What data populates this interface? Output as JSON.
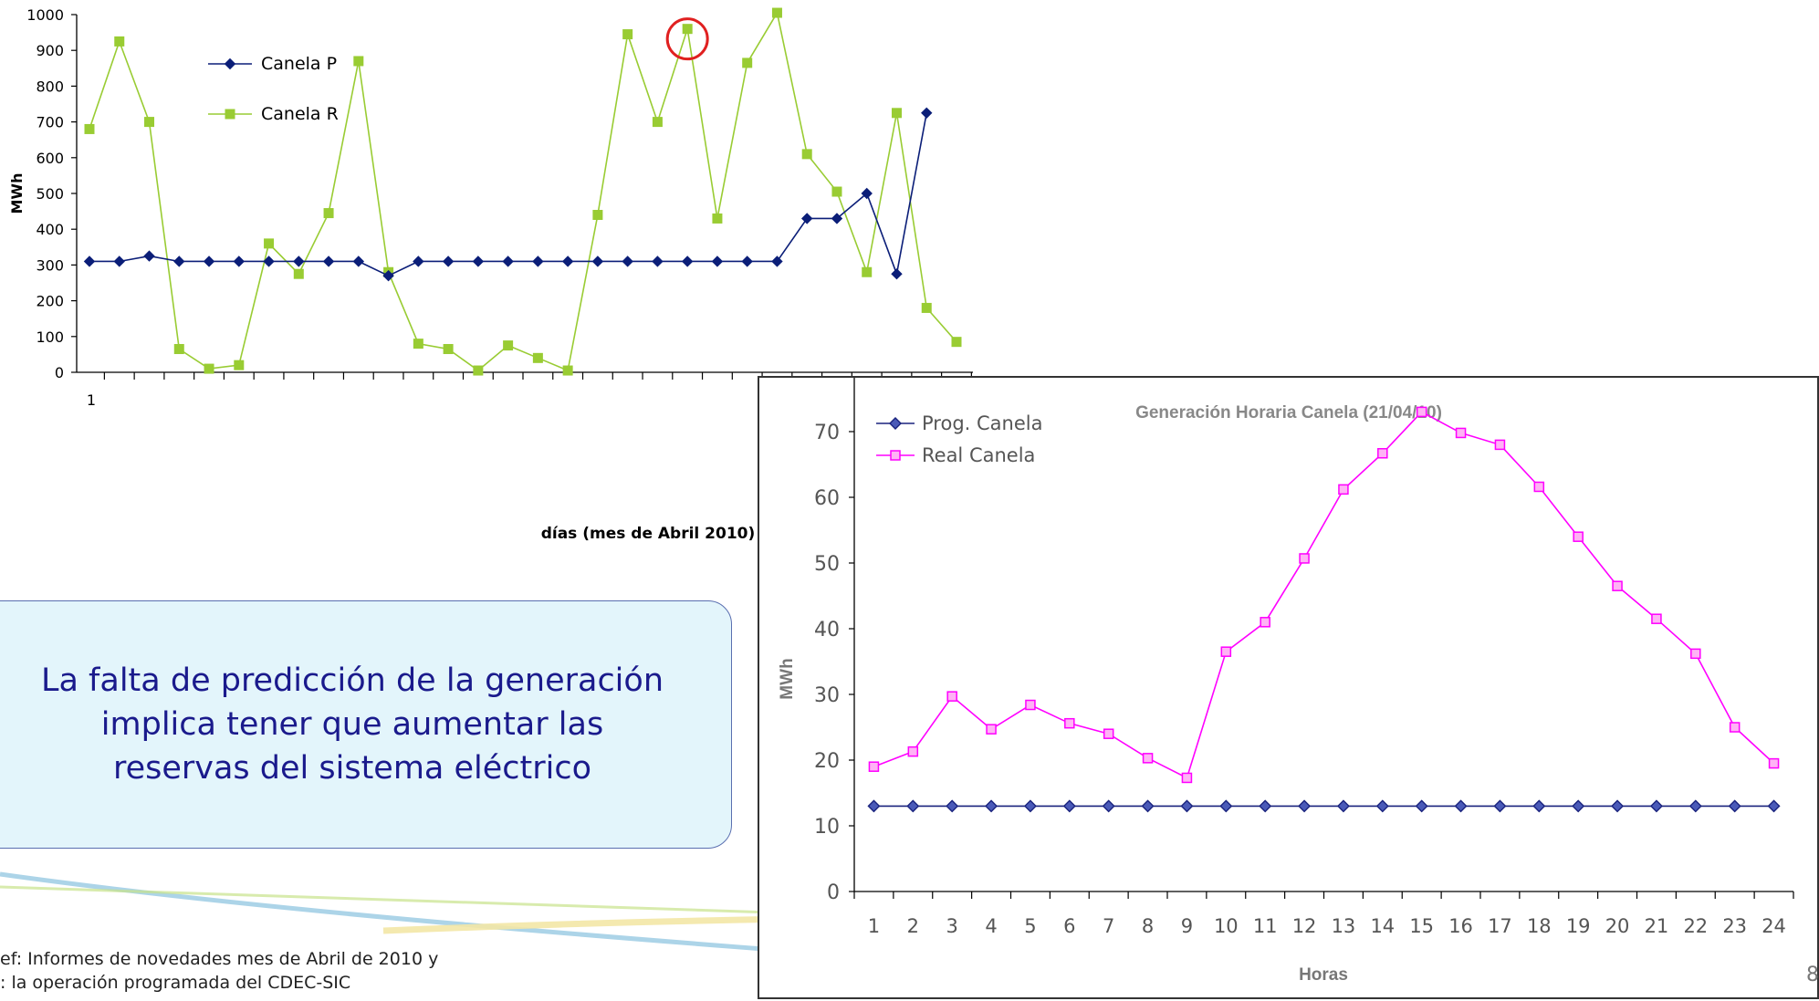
{
  "chart_data": [
    {
      "type": "line",
      "title": "",
      "xlabel": "días (mes de Abril 2010)",
      "ylabel": "MWh",
      "ylim": [
        0,
        1000
      ],
      "yticks": [
        0,
        100,
        200,
        300,
        400,
        500,
        600,
        700,
        800,
        900,
        1000
      ],
      "xtick_label": "1",
      "x": [
        1,
        2,
        3,
        4,
        5,
        6,
        7,
        8,
        9,
        10,
        11,
        12,
        13,
        14,
        15,
        16,
        17,
        18,
        19,
        20,
        21,
        22,
        23,
        24,
        25,
        26,
        27,
        28,
        29,
        30
      ],
      "legend_position": "top-left",
      "series": [
        {
          "name": "Canela P",
          "color": "#0b1e78",
          "marker": "diamond",
          "values": [
            310,
            310,
            325,
            310,
            310,
            310,
            310,
            310,
            310,
            310,
            270,
            310,
            310,
            310,
            310,
            310,
            310,
            310,
            310,
            310,
            310,
            310,
            310,
            310,
            430,
            430,
            500,
            275,
            725,
            null
          ]
        },
        {
          "name": "Canela R",
          "color": "#99cc33",
          "marker": "square",
          "values": [
            680,
            925,
            700,
            65,
            10,
            20,
            360,
            275,
            445,
            870,
            280,
            80,
            65,
            5,
            75,
            40,
            5,
            440,
            945,
            700,
            960,
            430,
            865,
            1005,
            610,
            505,
            280,
            725,
            180,
            85
          ]
        }
      ],
      "highlight": {
        "series": "Canela R",
        "x": 21,
        "color": "#e02020"
      }
    },
    {
      "type": "line",
      "title": "Generación Horaria Canela (21/04/10)",
      "xlabel": "Horas",
      "ylabel": "MWh",
      "ylim": [
        0,
        80
      ],
      "yticks": [
        0,
        10,
        20,
        30,
        40,
        50,
        60,
        70,
        80
      ],
      "categories": [
        "1",
        "2",
        "3",
        "4",
        "5",
        "6",
        "7",
        "8",
        "9",
        "10",
        "11",
        "12",
        "13",
        "14",
        "15",
        "16",
        "17",
        "18",
        "19",
        "20",
        "21",
        "22",
        "23",
        "24"
      ],
      "legend_position": "top-left",
      "series": [
        {
          "name": "Prog. Canela",
          "color": "#1a237e",
          "marker": "diamond",
          "values": [
            13,
            13,
            13,
            13,
            13,
            13,
            13,
            13,
            13,
            13,
            13,
            13,
            13,
            13,
            13,
            13,
            13,
            13,
            13,
            13,
            13,
            13,
            13,
            13
          ]
        },
        {
          "name": "Real Canela",
          "color": "#ff00ff",
          "marker": "square",
          "values": [
            19,
            21.3,
            29.7,
            24.7,
            28.4,
            25.6,
            24,
            20.3,
            17.3,
            36.5,
            41,
            50.7,
            61.2,
            66.7,
            73,
            69.8,
            68,
            61.6,
            54,
            46.5,
            41.5,
            36.2,
            25,
            19.5
          ]
        }
      ]
    }
  ],
  "callout": {
    "lines": [
      "La falta de predicción de la generación",
      "implica tener que aumentar las",
      "reservas del sistema eléctrico"
    ]
  },
  "reference": {
    "line1": "ef: Informes de novedades mes de Abril de 2010 y",
    "line2": ": la operación programada del CDEC-SIC"
  },
  "page_number": "8"
}
